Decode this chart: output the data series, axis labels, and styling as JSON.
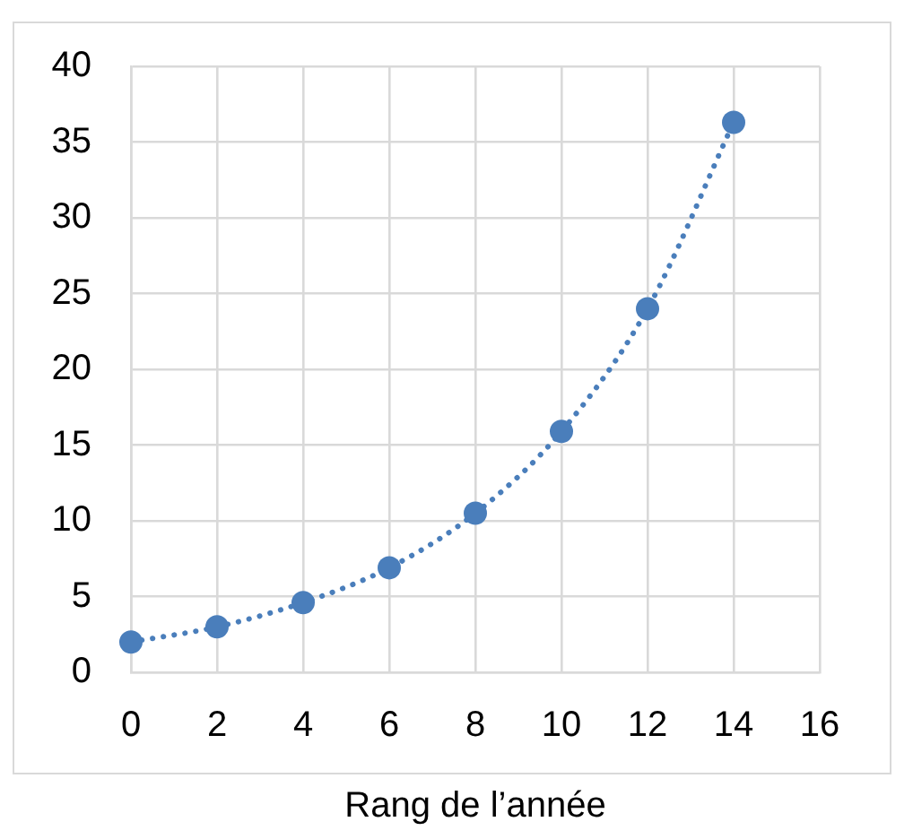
{
  "chart_data": {
    "type": "line",
    "xlabel": "Rang de l’année",
    "x": [
      0,
      2,
      4,
      6,
      8,
      10,
      12,
      14
    ],
    "values": [
      2,
      3,
      4.6,
      6.9,
      10.5,
      15.9,
      24,
      36.3
    ],
    "color": "#4a7ebb",
    "xlim": [
      0,
      16
    ],
    "xticks": [
      0,
      2,
      4,
      6,
      8,
      10,
      12,
      14,
      16
    ],
    "ylim": [
      0,
      40
    ],
    "yticks": [
      0,
      5,
      10,
      15,
      20,
      25,
      30,
      35,
      40
    ],
    "grid": true,
    "marker": "circle",
    "line_style": "dotted"
  }
}
